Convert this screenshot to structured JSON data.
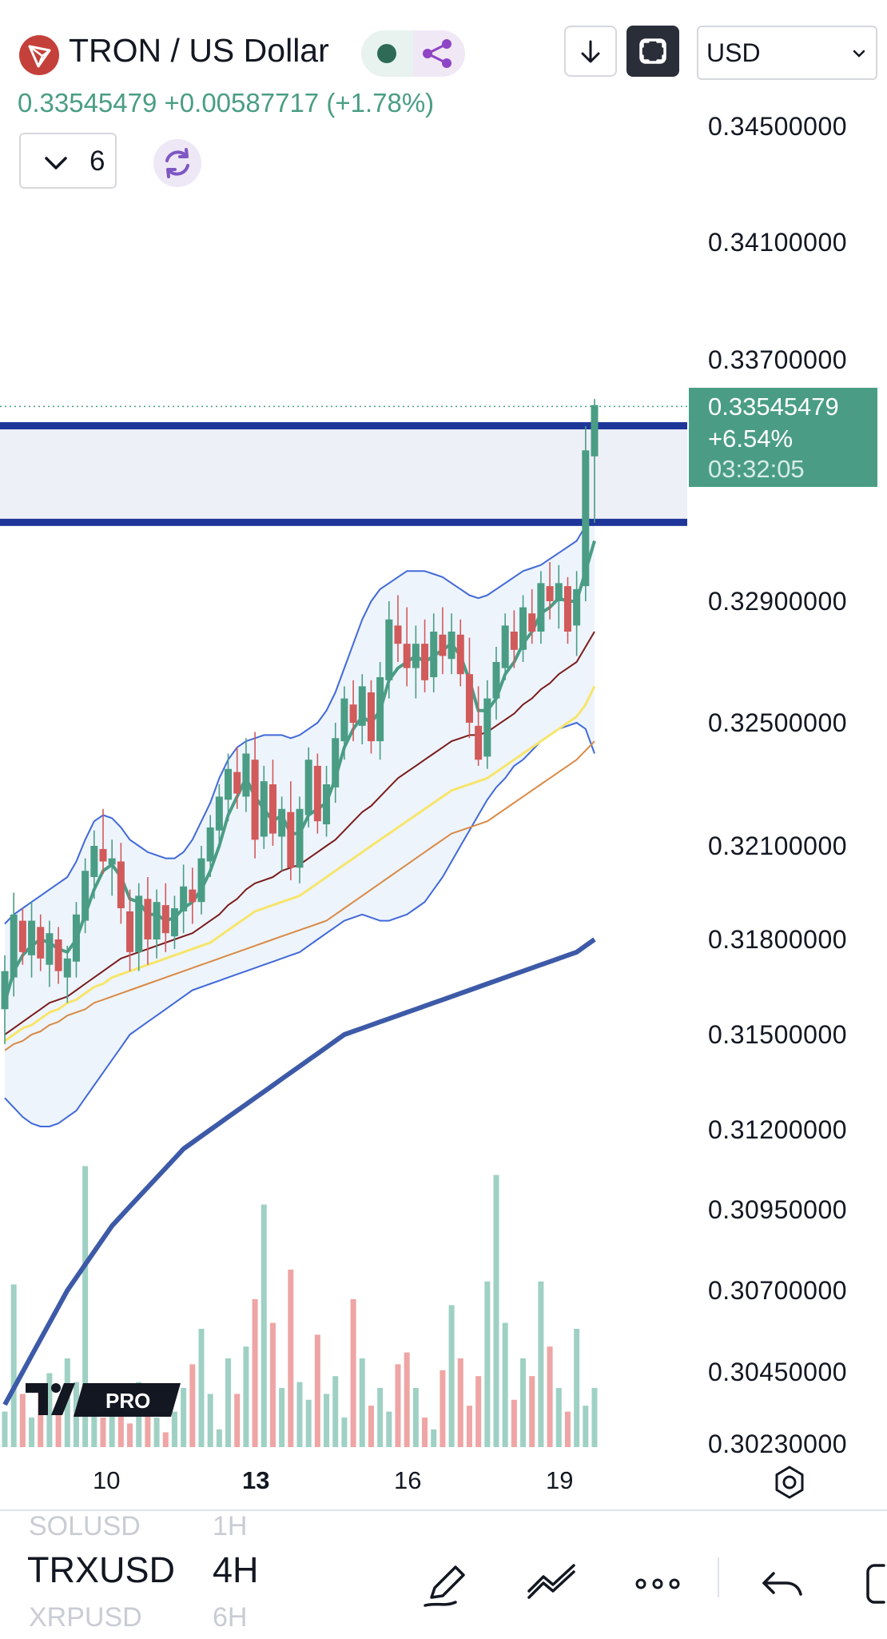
{
  "header": {
    "symbol_title": "TRON / US Dollar",
    "last_price": "0.33545479",
    "change": "+0.00587717",
    "change_pct": "(+1.78%)",
    "indicator_count": "6",
    "currency": "USD"
  },
  "current_price_tag": {
    "price": "0.33545479",
    "pct": "+6.54%",
    "countdown": "03:32:05"
  },
  "price_axis": {
    "labels": [
      "0.34500000",
      "0.34100000",
      "0.33700000",
      "0.32900000",
      "0.32500000",
      "0.32100000",
      "0.31800000",
      "0.31500000",
      "0.31200000",
      "0.30950000",
      "0.30700000",
      "0.30450000",
      "0.30230000"
    ]
  },
  "time_axis": {
    "labels": [
      "10",
      "13",
      "16",
      "19"
    ],
    "bold_label": "13"
  },
  "bottom_toolbar": {
    "symbols_above": "SOLUSD",
    "symbol": "TRXUSD",
    "symbols_below": "XRPUSD",
    "interval_above": "1H",
    "interval": "4H",
    "interval_below": "6H"
  },
  "branding": {
    "logo_text": "PRO"
  },
  "colors": {
    "up": "#4a9d84",
    "down": "#d15a5a",
    "volume_up": "#9fd0c4",
    "volume_down": "#eea5a4",
    "resistance_zone": "#1e3699",
    "sma_fast": "#4a9d84",
    "sma_mid": "#7b1c1c",
    "sma_yellow": "#f7e56a",
    "sma_orange": "#d98a45",
    "sma_long": "#3d5aa8",
    "bollinger": "#4169d8"
  },
  "chart_data": {
    "type": "candlestick",
    "title": "TRON / US Dollar",
    "interval": "4H",
    "ylim": [
      0.3023,
      0.3465
    ],
    "current_price": 0.33545479,
    "x_ticks": [
      "10",
      "13",
      "16",
      "19"
    ],
    "resistance_zone": [
      0.3316,
      0.3348
    ],
    "candles": [
      [
        0.3158,
        0.3175,
        0.3147,
        0.317
      ],
      [
        0.3168,
        0.3195,
        0.3162,
        0.3188
      ],
      [
        0.3186,
        0.319,
        0.3172,
        0.3176
      ],
      [
        0.3175,
        0.3192,
        0.3168,
        0.3186
      ],
      [
        0.3184,
        0.3188,
        0.317,
        0.3174
      ],
      [
        0.3172,
        0.3186,
        0.3165,
        0.3182
      ],
      [
        0.318,
        0.3184,
        0.3166,
        0.317
      ],
      [
        0.3168,
        0.3178,
        0.316,
        0.3174
      ],
      [
        0.3173,
        0.3192,
        0.3168,
        0.3188
      ],
      [
        0.3186,
        0.3206,
        0.3182,
        0.3202
      ],
      [
        0.32,
        0.3215,
        0.3193,
        0.321
      ],
      [
        0.3209,
        0.3222,
        0.3201,
        0.3205
      ],
      [
        0.3204,
        0.3212,
        0.3194,
        0.3206
      ],
      [
        0.3205,
        0.3211,
        0.3185,
        0.319
      ],
      [
        0.3189,
        0.3196,
        0.317,
        0.3176
      ],
      [
        0.3176,
        0.3198,
        0.317,
        0.3194
      ],
      [
        0.3193,
        0.32,
        0.3172,
        0.318
      ],
      [
        0.318,
        0.3196,
        0.3174,
        0.3192
      ],
      [
        0.3191,
        0.3198,
        0.3176,
        0.3182
      ],
      [
        0.3181,
        0.3194,
        0.3177,
        0.319
      ],
      [
        0.3189,
        0.3204,
        0.3182,
        0.3197
      ],
      [
        0.3196,
        0.3203,
        0.3185,
        0.3192
      ],
      [
        0.3192,
        0.321,
        0.3188,
        0.3206
      ],
      [
        0.3205,
        0.322,
        0.32,
        0.3216
      ],
      [
        0.3215,
        0.323,
        0.321,
        0.3226
      ],
      [
        0.3225,
        0.324,
        0.3218,
        0.3235
      ],
      [
        0.3234,
        0.3242,
        0.3222,
        0.3227
      ],
      [
        0.3226,
        0.3245,
        0.3221,
        0.324
      ],
      [
        0.3238,
        0.3247,
        0.3206,
        0.3212
      ],
      [
        0.3213,
        0.3236,
        0.3209,
        0.3231
      ],
      [
        0.323,
        0.3238,
        0.321,
        0.3214
      ],
      [
        0.3213,
        0.3226,
        0.3202,
        0.3222
      ],
      [
        0.3221,
        0.3231,
        0.3199,
        0.3203
      ],
      [
        0.3203,
        0.3226,
        0.3198,
        0.3222
      ],
      [
        0.322,
        0.3242,
        0.3216,
        0.3238
      ],
      [
        0.3236,
        0.324,
        0.3214,
        0.3218
      ],
      [
        0.3217,
        0.3236,
        0.3213,
        0.323
      ],
      [
        0.3229,
        0.325,
        0.3224,
        0.3245
      ],
      [
        0.3244,
        0.3262,
        0.3238,
        0.3258
      ],
      [
        0.3256,
        0.3264,
        0.3244,
        0.325
      ],
      [
        0.3249,
        0.3266,
        0.3243,
        0.3262
      ],
      [
        0.326,
        0.3264,
        0.324,
        0.3244
      ],
      [
        0.3244,
        0.327,
        0.3238,
        0.3265
      ],
      [
        0.3264,
        0.329,
        0.3258,
        0.3284
      ],
      [
        0.3282,
        0.3292,
        0.327,
        0.3276
      ],
      [
        0.3276,
        0.3288,
        0.3262,
        0.3268
      ],
      [
        0.3268,
        0.3282,
        0.3258,
        0.3276
      ],
      [
        0.3276,
        0.3284,
        0.326,
        0.3264
      ],
      [
        0.3265,
        0.3286,
        0.326,
        0.328
      ],
      [
        0.3279,
        0.3288,
        0.3266,
        0.3272
      ],
      [
        0.3271,
        0.3286,
        0.3266,
        0.328
      ],
      [
        0.3279,
        0.3284,
        0.3262,
        0.3266
      ],
      [
        0.3266,
        0.3278,
        0.3245,
        0.325
      ],
      [
        0.3249,
        0.3262,
        0.3236,
        0.3238
      ],
      [
        0.3239,
        0.3264,
        0.3235,
        0.3258
      ],
      [
        0.3258,
        0.3275,
        0.3251,
        0.327
      ],
      [
        0.3268,
        0.3286,
        0.3264,
        0.3282
      ],
      [
        0.328,
        0.3287,
        0.3268,
        0.3274
      ],
      [
        0.3274,
        0.3292,
        0.327,
        0.3288
      ],
      [
        0.3286,
        0.3294,
        0.3276,
        0.328
      ],
      [
        0.328,
        0.33,
        0.3276,
        0.3296
      ],
      [
        0.3295,
        0.3303,
        0.3284,
        0.329
      ],
      [
        0.329,
        0.3302,
        0.3281,
        0.3296
      ],
      [
        0.3295,
        0.3298,
        0.3276,
        0.328
      ],
      [
        0.3282,
        0.33,
        0.3272,
        0.3294
      ],
      [
        0.3295,
        0.3348,
        0.329,
        0.334
      ],
      [
        0.3338,
        0.3357,
        0.3316,
        0.3355
      ]
    ],
    "moving_averages": [
      {
        "color": "#4a9d84",
        "values": [
          0.316,
          0.317,
          0.3175,
          0.3178,
          0.318,
          0.3179,
          0.3177,
          0.3176,
          0.318,
          0.3188,
          0.3196,
          0.3202,
          0.3204,
          0.32,
          0.3193,
          0.3192,
          0.3188,
          0.3188,
          0.3186,
          0.3187,
          0.319,
          0.3192,
          0.3196,
          0.3202,
          0.321,
          0.322,
          0.3226,
          0.3232,
          0.3226,
          0.3222,
          0.3218,
          0.322,
          0.3214,
          0.3214,
          0.322,
          0.3222,
          0.3224,
          0.3232,
          0.3242,
          0.3248,
          0.3252,
          0.325,
          0.3254,
          0.3264,
          0.3268,
          0.327,
          0.3272,
          0.327,
          0.3272,
          0.3274,
          0.3276,
          0.3272,
          0.3264,
          0.3254,
          0.3254,
          0.3258,
          0.3266,
          0.327,
          0.3276,
          0.328,
          0.3286,
          0.3288,
          0.3291,
          0.329,
          0.329,
          0.33,
          0.331
        ]
      },
      {
        "color": "#7b1c1c",
        "values": [
          0.315,
          0.3152,
          0.3154,
          0.3156,
          0.3158,
          0.316,
          0.3161,
          0.3162,
          0.3164,
          0.3166,
          0.3168,
          0.317,
          0.3172,
          0.3174,
          0.3175,
          0.3176,
          0.3177,
          0.3178,
          0.3179,
          0.318,
          0.3181,
          0.3182,
          0.3184,
          0.3186,
          0.3188,
          0.3191,
          0.3193,
          0.3196,
          0.3198,
          0.3199,
          0.32,
          0.3202,
          0.3203,
          0.3204,
          0.3206,
          0.3208,
          0.321,
          0.3212,
          0.3215,
          0.3218,
          0.3221,
          0.3223,
          0.3226,
          0.3229,
          0.3232,
          0.3234,
          0.3236,
          0.3238,
          0.324,
          0.3242,
          0.3244,
          0.3245,
          0.3246,
          0.3246,
          0.3247,
          0.3249,
          0.3251,
          0.3253,
          0.3256,
          0.3258,
          0.3261,
          0.3263,
          0.3266,
          0.3268,
          0.327,
          0.3275,
          0.328
        ]
      },
      {
        "color": "#f7e56a",
        "values": [
          0.3148,
          0.315,
          0.3152,
          0.3153,
          0.3155,
          0.3157,
          0.3158,
          0.316,
          0.3161,
          0.3163,
          0.3165,
          0.3166,
          0.3168,
          0.3169,
          0.317,
          0.3171,
          0.3172,
          0.3173,
          0.3174,
          0.3175,
          0.3176,
          0.3177,
          0.3178,
          0.3179,
          0.3181,
          0.3183,
          0.3185,
          0.3187,
          0.3189,
          0.319,
          0.3191,
          0.3192,
          0.3193,
          0.3194,
          0.3196,
          0.3198,
          0.32,
          0.3202,
          0.3204,
          0.3206,
          0.3208,
          0.321,
          0.3212,
          0.3214,
          0.3216,
          0.3218,
          0.322,
          0.3222,
          0.3224,
          0.3226,
          0.3228,
          0.3229,
          0.323,
          0.3231,
          0.3232,
          0.3234,
          0.3236,
          0.3238,
          0.324,
          0.3242,
          0.3244,
          0.3246,
          0.3248,
          0.325,
          0.3252,
          0.3256,
          0.3262
        ]
      },
      {
        "color": "#d98a45",
        "values": [
          0.3145,
          0.3147,
          0.3148,
          0.315,
          0.3151,
          0.3153,
          0.3154,
          0.3156,
          0.3157,
          0.3158,
          0.316,
          0.3161,
          0.3162,
          0.3163,
          0.3164,
          0.3165,
          0.3166,
          0.3167,
          0.3168,
          0.3169,
          0.317,
          0.3171,
          0.3172,
          0.3173,
          0.3174,
          0.3175,
          0.3176,
          0.3177,
          0.3178,
          0.3179,
          0.318,
          0.3181,
          0.3182,
          0.3183,
          0.3184,
          0.3185,
          0.3186,
          0.3188,
          0.319,
          0.3192,
          0.3194,
          0.3196,
          0.3198,
          0.32,
          0.3202,
          0.3204,
          0.3206,
          0.3208,
          0.321,
          0.3212,
          0.3214,
          0.3215,
          0.3216,
          0.3217,
          0.3218,
          0.322,
          0.3222,
          0.3224,
          0.3226,
          0.3228,
          0.323,
          0.3232,
          0.3234,
          0.3236,
          0.3238,
          0.3241,
          0.3244
        ]
      },
      {
        "color": "#3d5aa8",
        "values": [
          0.3035,
          0.304,
          0.3045,
          0.305,
          0.3055,
          0.306,
          0.3065,
          0.307,
          0.3074,
          0.3078,
          0.3082,
          0.3086,
          0.309,
          0.3093,
          0.3096,
          0.3099,
          0.3102,
          0.3105,
          0.3108,
          0.3111,
          0.3114,
          0.3116,
          0.3118,
          0.312,
          0.3122,
          0.3124,
          0.3126,
          0.3128,
          0.313,
          0.3132,
          0.3134,
          0.3136,
          0.3138,
          0.314,
          0.3142,
          0.3144,
          0.3146,
          0.3148,
          0.315,
          0.3151,
          0.3152,
          0.3153,
          0.3154,
          0.3155,
          0.3156,
          0.3157,
          0.3158,
          0.3159,
          0.316,
          0.3161,
          0.3162,
          0.3163,
          0.3164,
          0.3165,
          0.3166,
          0.3167,
          0.3168,
          0.3169,
          0.317,
          0.3171,
          0.3172,
          0.3173,
          0.3174,
          0.3175,
          0.3176,
          0.3178,
          0.318
        ]
      }
    ],
    "bollinger_upper": [
      0.3185,
      0.3188,
      0.319,
      0.3192,
      0.3194,
      0.3196,
      0.3198,
      0.32,
      0.3205,
      0.3212,
      0.3218,
      0.322,
      0.3219,
      0.3216,
      0.3212,
      0.321,
      0.3208,
      0.3207,
      0.3206,
      0.3206,
      0.3208,
      0.3212,
      0.3218,
      0.3224,
      0.3232,
      0.3238,
      0.3242,
      0.3244,
      0.3245,
      0.3246,
      0.3246,
      0.3246,
      0.3245,
      0.3246,
      0.3248,
      0.325,
      0.3254,
      0.326,
      0.3268,
      0.3276,
      0.3284,
      0.329,
      0.3294,
      0.3296,
      0.3298,
      0.33,
      0.33,
      0.33,
      0.3299,
      0.3298,
      0.3296,
      0.3294,
      0.3292,
      0.3291,
      0.3292,
      0.3294,
      0.3296,
      0.3298,
      0.33,
      0.3301,
      0.3302,
      0.3304,
      0.3306,
      0.3308,
      0.331,
      0.3315,
      0.3322
    ],
    "bollinger_lower": [
      0.313,
      0.3127,
      0.3124,
      0.3122,
      0.3121,
      0.3121,
      0.3122,
      0.3124,
      0.3126,
      0.313,
      0.3134,
      0.3138,
      0.3142,
      0.3146,
      0.315,
      0.3152,
      0.3154,
      0.3156,
      0.3158,
      0.316,
      0.3162,
      0.3164,
      0.3165,
      0.3166,
      0.3167,
      0.3168,
      0.3169,
      0.317,
      0.3171,
      0.3172,
      0.3173,
      0.3174,
      0.3175,
      0.3176,
      0.3178,
      0.318,
      0.3182,
      0.3184,
      0.3186,
      0.3187,
      0.3188,
      0.3187,
      0.3186,
      0.3186,
      0.3187,
      0.3188,
      0.319,
      0.3192,
      0.3196,
      0.32,
      0.3205,
      0.321,
      0.3215,
      0.322,
      0.3225,
      0.3229,
      0.3232,
      0.3236,
      0.3238,
      0.3241,
      0.3244,
      0.3246,
      0.3248,
      0.3249,
      0.325,
      0.3248,
      0.324
    ],
    "volume": [
      0.12,
      0.55,
      0.18,
      0.1,
      0.2,
      0.25,
      0.14,
      0.3,
      0.22,
      0.95,
      0.16,
      0.1,
      0.12,
      0.18,
      0.08,
      0.22,
      0.14,
      0.1,
      0.05,
      0.12,
      0.2,
      0.28,
      0.4,
      0.18,
      0.06,
      0.3,
      0.18,
      0.34,
      0.5,
      0.82,
      0.42,
      0.2,
      0.6,
      0.22,
      0.16,
      0.38,
      0.18,
      0.24,
      0.1,
      0.5,
      0.3,
      0.14,
      0.2,
      0.12,
      0.28,
      0.32,
      0.2,
      0.1,
      0.06,
      0.26,
      0.48,
      0.3,
      0.14,
      0.24,
      0.56,
      0.92,
      0.42,
      0.16,
      0.3,
      0.24,
      0.56,
      0.34,
      0.2,
      0.12,
      0.4,
      0.14,
      0.2
    ]
  }
}
